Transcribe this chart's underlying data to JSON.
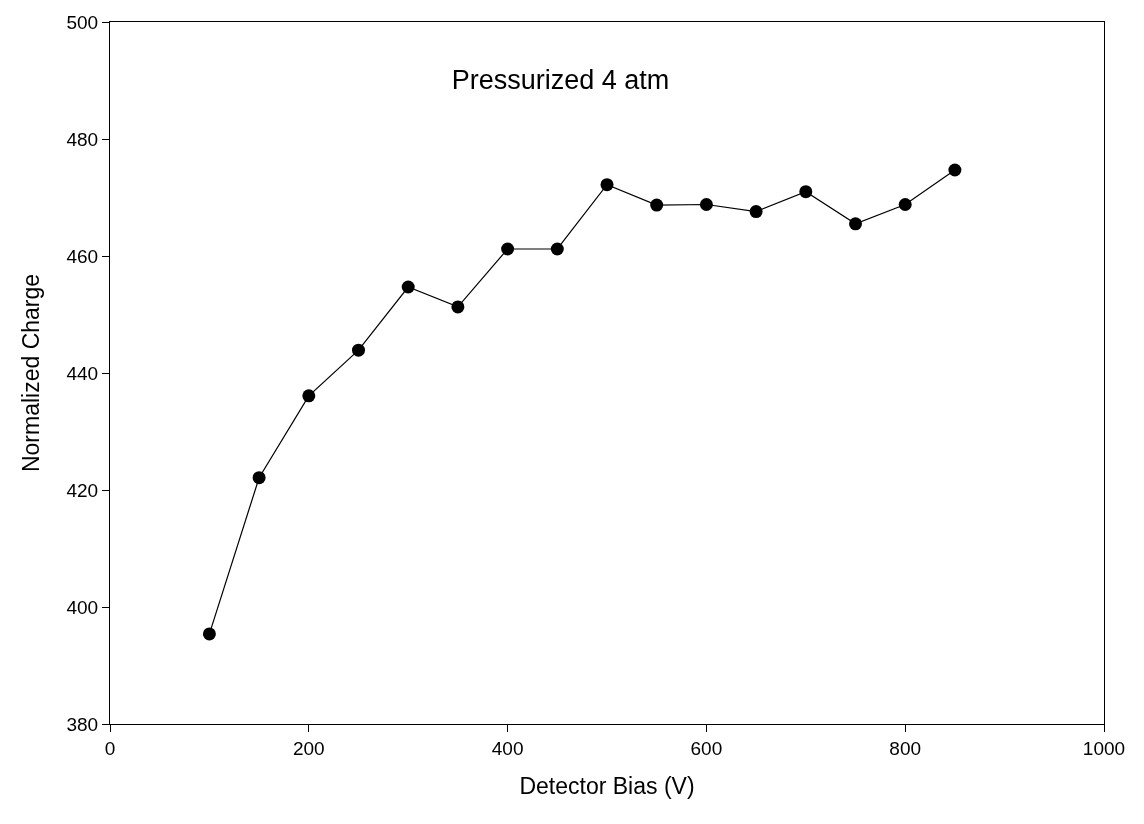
{
  "chart_data": {
    "type": "line",
    "title": "Pressurized 4 atm",
    "xlabel": "Detector Bias (V)",
    "ylabel": "Normalized Charge",
    "x": [
      100,
      150,
      200,
      250,
      300,
      350,
      400,
      450,
      500,
      550,
      600,
      650,
      700,
      750,
      800,
      850
    ],
    "series": [
      {
        "color": "#000000",
        "values": [
          395.4,
          422.1,
          436.1,
          443.9,
          454.7,
          451.3,
          461.2,
          461.2,
          472.2,
          468.7,
          468.8,
          467.6,
          471.0,
          465.5,
          468.8,
          474.7
        ]
      }
    ],
    "xlim": [
      0,
      1000
    ],
    "xticks": [
      0,
      200,
      400,
      600,
      800,
      1000
    ],
    "ylim": [
      380,
      500
    ],
    "yticks": [
      380,
      400,
      420,
      440,
      460,
      480,
      500
    ],
    "marker": "circle",
    "line_style": "solid"
  }
}
